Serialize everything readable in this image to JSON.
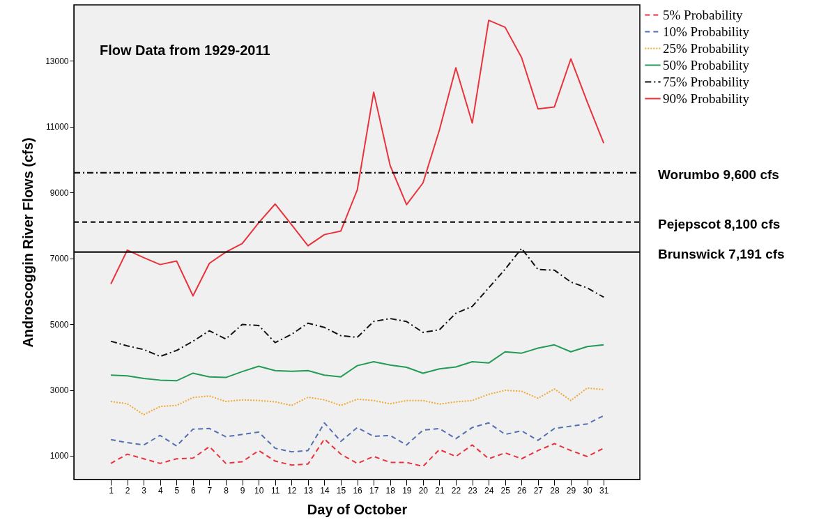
{
  "chart_data": {
    "type": "line",
    "title": "Flow Data from 1929-2011",
    "xlabel": "Day of October",
    "ylabel": "Androscoggin River Flows (cfs)",
    "x": [
      1,
      2,
      3,
      4,
      5,
      6,
      7,
      8,
      9,
      10,
      11,
      12,
      13,
      14,
      15,
      16,
      17,
      18,
      19,
      20,
      21,
      22,
      23,
      24,
      25,
      26,
      27,
      28,
      29,
      30,
      31
    ],
    "xlim": [
      -1.25,
      33.2
    ],
    "xticks": [
      1,
      2,
      3,
      4,
      5,
      6,
      7,
      8,
      9,
      10,
      11,
      12,
      13,
      14,
      15,
      16,
      17,
      18,
      19,
      20,
      21,
      22,
      23,
      24,
      25,
      26,
      27,
      28,
      29,
      30,
      31
    ],
    "ylim": [
      280,
      14700
    ],
    "yticks": [
      1000,
      3000,
      5000,
      7000,
      9000,
      11000,
      13000
    ],
    "grid": false,
    "legend": "top right",
    "series": [
      {
        "name": "5% Probability",
        "color": "#e8333d",
        "line_style": "dashed",
        "values": [
          770,
          1050,
          910,
          770,
          910,
          930,
          1280,
          770,
          820,
          1160,
          840,
          720,
          750,
          1510,
          1050,
          770,
          980,
          800,
          800,
          680,
          1190,
          980,
          1330,
          910,
          1090,
          910,
          1160,
          1370,
          1160,
          980,
          1230
        ]
      },
      {
        "name": "10% Probability",
        "color": "#5570b0",
        "line_style": "dashed",
        "values": [
          1490,
          1400,
          1330,
          1620,
          1300,
          1810,
          1830,
          1580,
          1650,
          1720,
          1230,
          1120,
          1160,
          2000,
          1440,
          1860,
          1590,
          1620,
          1330,
          1780,
          1830,
          1520,
          1860,
          2000,
          1650,
          1760,
          1470,
          1830,
          1900,
          1970,
          2220
        ]
      },
      {
        "name": "25% Probability",
        "color": "#f0a830",
        "line_style": "dotted",
        "values": [
          2650,
          2580,
          2250,
          2500,
          2530,
          2770,
          2820,
          2650,
          2700,
          2680,
          2640,
          2530,
          2780,
          2700,
          2530,
          2720,
          2680,
          2580,
          2680,
          2680,
          2570,
          2640,
          2680,
          2870,
          2990,
          2960,
          2750,
          3030,
          2680,
          3060,
          3010
        ]
      },
      {
        "name": "50% Probability",
        "color": "#239b56",
        "line_style": "solid",
        "values": [
          3450,
          3430,
          3350,
          3300,
          3280,
          3510,
          3400,
          3380,
          3560,
          3720,
          3590,
          3570,
          3590,
          3450,
          3400,
          3740,
          3860,
          3760,
          3690,
          3510,
          3640,
          3700,
          3860,
          3820,
          4160,
          4120,
          4270,
          4370,
          4160,
          4320,
          4370
        ]
      },
      {
        "name": "75% Probability",
        "color": "#111111",
        "line_style": "dashdot",
        "values": [
          4480,
          4340,
          4230,
          4020,
          4200,
          4480,
          4800,
          4550,
          4990,
          4960,
          4440,
          4690,
          5030,
          4900,
          4650,
          4600,
          5080,
          5170,
          5080,
          4750,
          4830,
          5330,
          5540,
          6100,
          6670,
          7300,
          6660,
          6640,
          6280,
          6100,
          5820
        ]
      },
      {
        "name": "90% Probability",
        "color": "#e8333d",
        "line_style": "solid",
        "values": [
          6220,
          7250,
          7020,
          6810,
          6920,
          5860,
          6850,
          7190,
          7450,
          8080,
          8650,
          8020,
          7380,
          7720,
          7830,
          9080,
          12050,
          9820,
          8630,
          9290,
          10900,
          12790,
          11110,
          14230,
          14020,
          13100,
          11540,
          11600,
          13060,
          11750,
          10500
        ]
      }
    ],
    "ref_lines": [
      {
        "axis": "y",
        "value": 9600,
        "label": "Worumbo 9,600 cfs",
        "color": "#111111",
        "line_style": "dashdot"
      },
      {
        "axis": "y",
        "value": 8100,
        "label": "Pejepscot 8,100 cfs",
        "color": "#111111",
        "line_style": "dashed"
      },
      {
        "axis": "y",
        "value": 7191,
        "label": "Brunswick 7,191 cfs",
        "color": "#111111",
        "line_style": "solid"
      }
    ]
  }
}
